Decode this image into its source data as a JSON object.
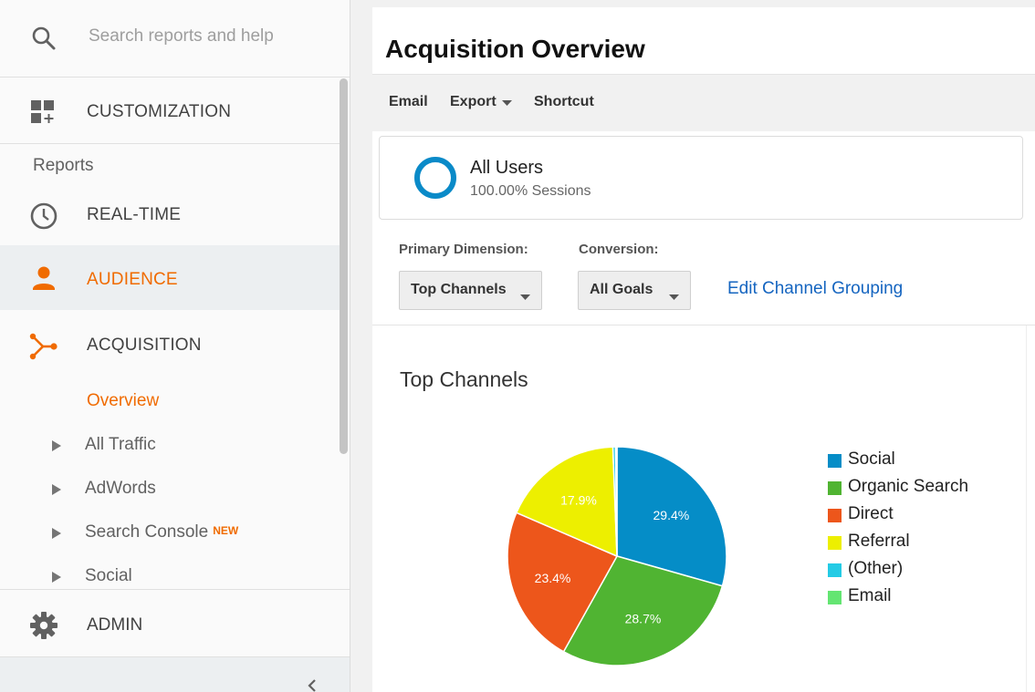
{
  "search": {
    "placeholder": "Search reports and help"
  },
  "nav": {
    "customization": "CUSTOMIZATION",
    "reports_heading": "Reports",
    "realtime": "REAL-TIME",
    "audience": "AUDIENCE",
    "acquisition": "ACQUISITION",
    "sub_items": [
      {
        "label": "Overview"
      },
      {
        "label": "All Traffic"
      },
      {
        "label": "AdWords"
      },
      {
        "label": "Search Console",
        "badge": "NEW"
      },
      {
        "label": "Social"
      }
    ],
    "admin": "ADMIN"
  },
  "page": {
    "title": "Acquisition Overview"
  },
  "toolbar": {
    "email": "Email",
    "export": "Export",
    "shortcut": "Shortcut"
  },
  "segment": {
    "name": "All Users",
    "detail": "100.00% Sessions"
  },
  "controls": {
    "primary_dimension_label": "Primary Dimension:",
    "primary_dimension_value": "Top Channels",
    "conversion_label": "Conversion:",
    "conversion_value": "All Goals",
    "edit_link": "Edit Channel Grouping"
  },
  "colors": {
    "accent": "#f06b00",
    "link": "#1565c0",
    "segment_ring": "#0a8ac8"
  },
  "chart_data": {
    "type": "pie",
    "title": "Top Channels",
    "slices": [
      {
        "label": "Social",
        "value": 29.4,
        "color": "#058dc7"
      },
      {
        "label": "Organic Search",
        "value": 28.7,
        "color": "#50b432"
      },
      {
        "label": "Direct",
        "value": 23.4,
        "color": "#ed561b"
      },
      {
        "label": "Referral",
        "value": 17.9,
        "color": "#edef00"
      },
      {
        "label": "(Other)",
        "value": 0.4,
        "color": "#24cbe5"
      },
      {
        "label": "Email",
        "value": 0.2,
        "color": "#64e572"
      }
    ],
    "value_labels": [
      "29.4%",
      "28.7%",
      "23.4%",
      "17.9%"
    ],
    "legend_position": "right"
  }
}
